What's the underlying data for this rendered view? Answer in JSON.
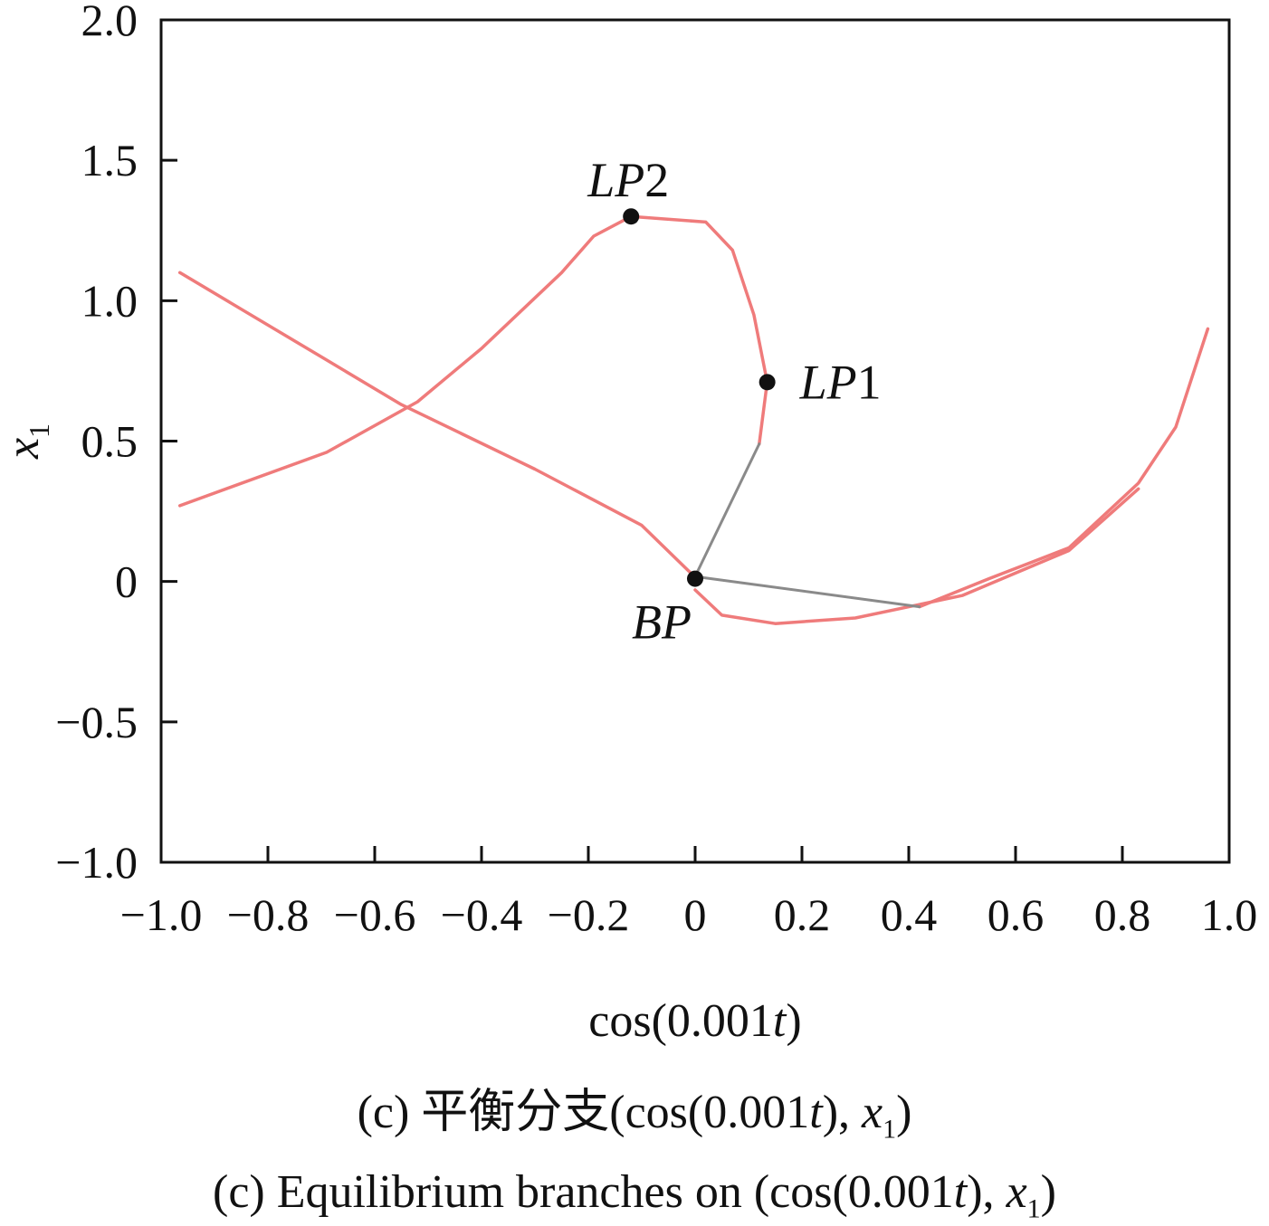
{
  "chart_data": {
    "type": "line",
    "xlabel": "cos(0.001t)",
    "ylabel": "x1",
    "xlim": [
      -1.0,
      1.0
    ],
    "ylim": [
      -1.0,
      2.0
    ],
    "x_ticks": [
      -1.0,
      -0.8,
      -0.6,
      -0.4,
      -0.2,
      0,
      0.2,
      0.4,
      0.6,
      0.8,
      1.0
    ],
    "x_tick_labels": [
      "−1.0",
      "−0.8",
      "−0.6",
      "−0.4",
      "−0.2",
      "0",
      "0.2",
      "0.4",
      "0.6",
      "0.8",
      "1.0"
    ],
    "y_ticks": [
      -1.0,
      -0.5,
      0,
      0.5,
      1.0,
      1.5,
      2.0
    ],
    "y_tick_labels": [
      "−1.0",
      "−0.5",
      "0",
      "0.5",
      "1.0",
      "1.5",
      "2.0"
    ],
    "grid": false,
    "colors": {
      "stable": "#ef7b7b",
      "unstable": "#8a8a8a",
      "point": "#111111",
      "axis": "#111111"
    },
    "series": [
      {
        "branch": "diagonal",
        "style": "stable",
        "points": [
          [
            -0.965,
            1.1
          ],
          [
            -0.7,
            0.8
          ],
          [
            -0.55,
            0.63
          ],
          [
            -0.3,
            0.4
          ],
          [
            -0.1,
            0.2
          ],
          [
            0.0,
            0.015
          ]
        ]
      },
      {
        "branch": "loop-to-lp1",
        "style": "stable",
        "points": [
          [
            -0.965,
            0.27
          ],
          [
            -0.69,
            0.46
          ],
          [
            -0.52,
            0.64
          ],
          [
            -0.4,
            0.83
          ],
          [
            -0.25,
            1.1
          ],
          [
            -0.19,
            1.23
          ],
          [
            -0.12,
            1.3
          ],
          [
            0.02,
            1.28
          ],
          [
            0.07,
            1.18
          ],
          [
            0.11,
            0.95
          ],
          [
            0.135,
            0.71
          ],
          [
            0.12,
            0.49
          ]
        ]
      },
      {
        "branch": "right-upper",
        "style": "stable",
        "points": [
          [
            0.42,
            -0.09
          ],
          [
            0.55,
            0.01
          ],
          [
            0.7,
            0.12
          ],
          [
            0.83,
            0.35
          ],
          [
            0.9,
            0.55
          ],
          [
            0.96,
            0.9
          ]
        ]
      },
      {
        "branch": "right-lower",
        "style": "stable",
        "points": [
          [
            0.0,
            -0.03
          ],
          [
            0.05,
            -0.12
          ],
          [
            0.15,
            -0.15
          ],
          [
            0.3,
            -0.13
          ],
          [
            0.5,
            -0.05
          ],
          [
            0.7,
            0.11
          ],
          [
            0.83,
            0.33
          ]
        ]
      },
      {
        "branch": "bp-to-lp1",
        "style": "unstable",
        "points": [
          [
            0.003,
            0.03
          ],
          [
            0.12,
            0.49
          ]
        ]
      },
      {
        "branch": "bp-to-right",
        "style": "unstable",
        "points": [
          [
            0.01,
            0.015
          ],
          [
            0.42,
            -0.09
          ]
        ]
      }
    ],
    "special_points": [
      {
        "label": "LP2",
        "x": -0.12,
        "y": 1.3
      },
      {
        "label": "LP1",
        "x": 0.135,
        "y": 0.71
      },
      {
        "label": "BP",
        "x": 0.0,
        "y": 0.01
      }
    ]
  },
  "captions": {
    "cn": "(c)  平衡分支(cos(0.001t), x1)",
    "en": "(c)  Equilibrium branches on (cos(0.001t), x1)"
  }
}
